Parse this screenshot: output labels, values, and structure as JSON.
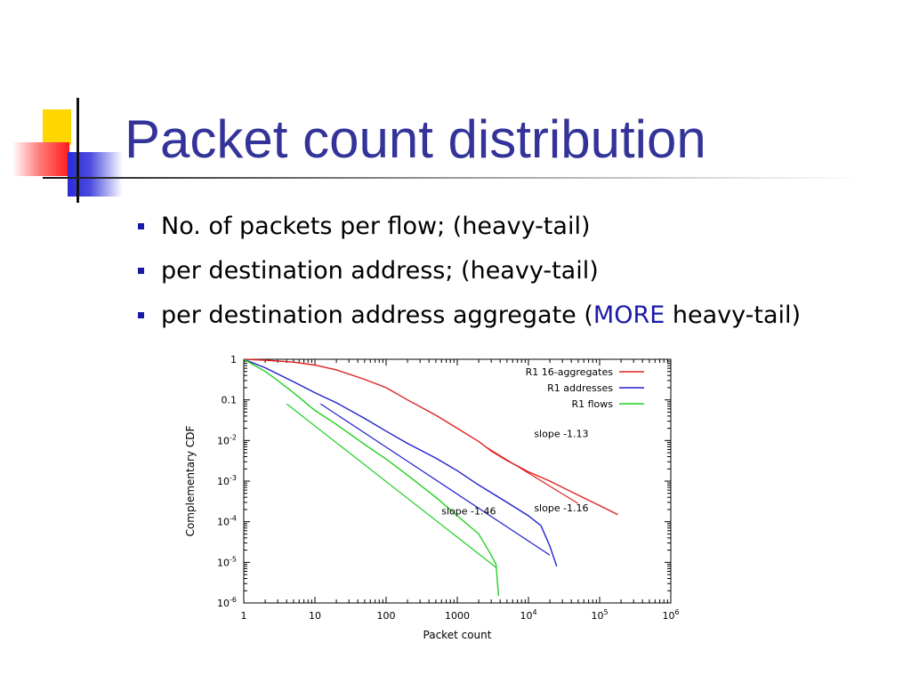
{
  "slide": {
    "title": "Packet count distribution",
    "bullets": [
      {
        "text": "No. of packets per flow; (heavy-tail)"
      },
      {
        "text_before": "per destination address; (heavy-tail)"
      },
      {
        "text_before": "per destination address aggregate (",
        "highlight": "MORE",
        "text_after": " heavy-tail)"
      }
    ],
    "colors": {
      "title": "#333399",
      "bullet": "#1a1aa6",
      "highlight": "#1a1aa6"
    }
  },
  "chart_data": {
    "type": "line",
    "xlabel": "Packet count",
    "ylabel": "Complementary CDF",
    "xscale": "log",
    "yscale": "log",
    "xlim": [
      1,
      1000000
    ],
    "ylim": [
      1e-06,
      1
    ],
    "x_ticks": [
      {
        "v": 1,
        "label": "1"
      },
      {
        "v": 10,
        "label": "10"
      },
      {
        "v": 100,
        "label": "100"
      },
      {
        "v": 1000,
        "label": "1000"
      },
      {
        "v": 10000,
        "base": "10",
        "exp": "4"
      },
      {
        "v": 100000,
        "base": "10",
        "exp": "5"
      },
      {
        "v": 1000000,
        "base": "10",
        "exp": "6"
      }
    ],
    "y_ticks": [
      {
        "v": 1,
        "label": "1"
      },
      {
        "v": 0.1,
        "label": "0.1"
      },
      {
        "v": 0.01,
        "base": "10",
        "exp": "-2"
      },
      {
        "v": 0.001,
        "base": "10",
        "exp": "-3"
      },
      {
        "v": 0.0001,
        "base": "10",
        "exp": "-4"
      },
      {
        "v": 1e-05,
        "base": "10",
        "exp": "-5"
      },
      {
        "v": 1e-06,
        "base": "10",
        "exp": "-6"
      }
    ],
    "legend_position": "top-right",
    "series": [
      {
        "name": "R1 16-aggregates",
        "color": "#e02020",
        "points": [
          [
            1,
            1
          ],
          [
            2,
            0.95
          ],
          [
            5,
            0.85
          ],
          [
            10,
            0.72
          ],
          [
            20,
            0.55
          ],
          [
            50,
            0.32
          ],
          [
            100,
            0.2
          ],
          [
            200,
            0.1
          ],
          [
            500,
            0.042
          ],
          [
            1000,
            0.02
          ],
          [
            2000,
            0.0095
          ],
          [
            3000,
            0.0055
          ],
          [
            5000,
            0.0032
          ],
          [
            10000,
            0.0017
          ],
          [
            20000,
            0.001
          ],
          [
            50000,
            0.00045
          ],
          [
            100000,
            0.00025
          ],
          [
            180000,
            0.00015
          ]
        ],
        "fit_points": [
          [
            2500,
            0.007
          ],
          [
            50000,
            0.00028
          ]
        ]
      },
      {
        "name": "R1 addresses",
        "color": "#2020d0",
        "points": [
          [
            1,
            1
          ],
          [
            2,
            0.62
          ],
          [
            5,
            0.28
          ],
          [
            10,
            0.15
          ],
          [
            20,
            0.085
          ],
          [
            50,
            0.035
          ],
          [
            100,
            0.017
          ],
          [
            200,
            0.0085
          ],
          [
            500,
            0.0037
          ],
          [
            1000,
            0.0018
          ],
          [
            2000,
            0.0008
          ],
          [
            5000,
            0.0003
          ],
          [
            10000,
            0.00014
          ],
          [
            15000,
            8e-05
          ],
          [
            20000,
            2.5e-05
          ],
          [
            25000,
            8e-06
          ]
        ],
        "fit_points": [
          [
            12,
            0.08
          ],
          [
            20000,
            1.5e-05
          ]
        ]
      },
      {
        "name": "R1 flows",
        "color": "#20d020",
        "points": [
          [
            1,
            1
          ],
          [
            2,
            0.5
          ],
          [
            3,
            0.3
          ],
          [
            5,
            0.15
          ],
          [
            10,
            0.055
          ],
          [
            20,
            0.025
          ],
          [
            50,
            0.008
          ],
          [
            100,
            0.0035
          ],
          [
            200,
            0.0014
          ],
          [
            500,
            0.0004
          ],
          [
            1000,
            0.00014
          ],
          [
            2000,
            5e-05
          ],
          [
            3000,
            1.5e-05
          ],
          [
            3500,
            9e-06
          ],
          [
            3800,
            1.5e-06
          ]
        ],
        "fit_points": [
          [
            4,
            0.08
          ],
          [
            3500,
            7.5e-06
          ]
        ]
      }
    ],
    "annotations": [
      {
        "text": "slope -1.13",
        "x": 12000,
        "y": 0.012
      },
      {
        "text": "slope -1.16",
        "x": 12000,
        "y": 0.00018
      },
      {
        "text": "slope -1.46",
        "x": 600,
        "y": 0.00015
      }
    ]
  }
}
